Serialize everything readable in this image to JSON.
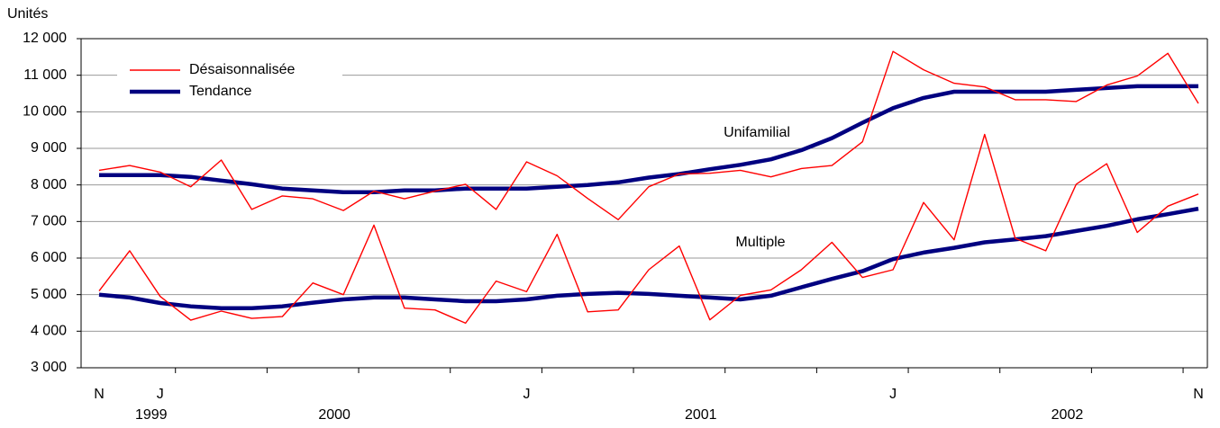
{
  "chart_data": {
    "type": "line",
    "y_label": "Unités",
    "ylim": [
      3000,
      12000
    ],
    "yticks": [
      {
        "value": 3000,
        "label": "3 000"
      },
      {
        "value": 4000,
        "label": "4 000"
      },
      {
        "value": 5000,
        "label": "5 000"
      },
      {
        "value": 6000,
        "label": "6 000"
      },
      {
        "value": 7000,
        "label": "7 000"
      },
      {
        "value": 8000,
        "label": "8 000"
      },
      {
        "value": 9000,
        "label": "9 000"
      },
      {
        "value": 10000,
        "label": "10 000"
      },
      {
        "value": 11000,
        "label": "11 000"
      },
      {
        "value": 12000,
        "label": "12 000"
      }
    ],
    "grid": true,
    "categories": [
      "N",
      null,
      "J",
      null,
      null,
      null,
      null,
      null,
      null,
      null,
      null,
      null,
      null,
      null,
      "J",
      null,
      null,
      null,
      null,
      null,
      null,
      null,
      null,
      null,
      null,
      null,
      "J",
      null,
      null,
      null,
      null,
      null,
      null,
      null,
      null,
      null,
      "N"
    ],
    "year_labels": [
      null,
      null,
      "1999",
      null,
      null,
      null,
      null,
      null,
      "2000",
      null,
      null,
      null,
      null,
      null,
      null,
      null,
      null,
      null,
      null,
      null,
      "2001",
      null,
      null,
      null,
      null,
      null,
      null,
      null,
      null,
      null,
      null,
      null,
      "2002",
      null,
      null,
      null,
      null
    ],
    "legend": [
      {
        "name": "Désaisonnalisée",
        "color": "#ff0000"
      },
      {
        "name": "Tendance",
        "color": "#000080"
      }
    ],
    "legend_position": "upper left",
    "series": [
      {
        "label": "Unifamilial",
        "adjusted": [
          8400,
          8530,
          8350,
          7950,
          8680,
          7330,
          7700,
          7620,
          7300,
          7830,
          7620,
          7830,
          8020,
          7330,
          8630,
          8250,
          7630,
          7050,
          7950,
          8300,
          8320,
          8400,
          8220,
          8450,
          8530,
          9180,
          11650,
          11150,
          10780,
          10680,
          10330,
          10330,
          10280,
          10730,
          10980,
          11600,
          10230
        ],
        "trend": [
          8270,
          8270,
          8270,
          8220,
          8120,
          8020,
          7900,
          7850,
          7800,
          7800,
          7850,
          7850,
          7900,
          7900,
          7900,
          7950,
          8000,
          8070,
          8200,
          8300,
          8430,
          8550,
          8700,
          8950,
          9280,
          9700,
          10100,
          10380,
          10550,
          10550,
          10550,
          10550,
          10600,
          10650,
          10700,
          10700,
          10700
        ]
      },
      {
        "label": "Multiple",
        "adjusted": [
          5100,
          6200,
          4950,
          4300,
          4550,
          4350,
          4400,
          5320,
          5000,
          6900,
          4630,
          4580,
          4220,
          5370,
          5080,
          6650,
          4530,
          4580,
          5680,
          6330,
          4310,
          4980,
          5130,
          5680,
          6430,
          5470,
          5680,
          7520,
          6500,
          9380,
          6540,
          6200,
          8020,
          8580,
          6700,
          7420,
          7750
        ],
        "trend": [
          5000,
          4920,
          4770,
          4680,
          4630,
          4630,
          4680,
          4780,
          4870,
          4920,
          4920,
          4870,
          4820,
          4820,
          4870,
          4970,
          5020,
          5050,
          5020,
          4970,
          4920,
          4870,
          4970,
          5200,
          5430,
          5640,
          5970,
          6150,
          6280,
          6430,
          6510,
          6600,
          6740,
          6880,
          7060,
          7200,
          7350
        ]
      }
    ]
  }
}
